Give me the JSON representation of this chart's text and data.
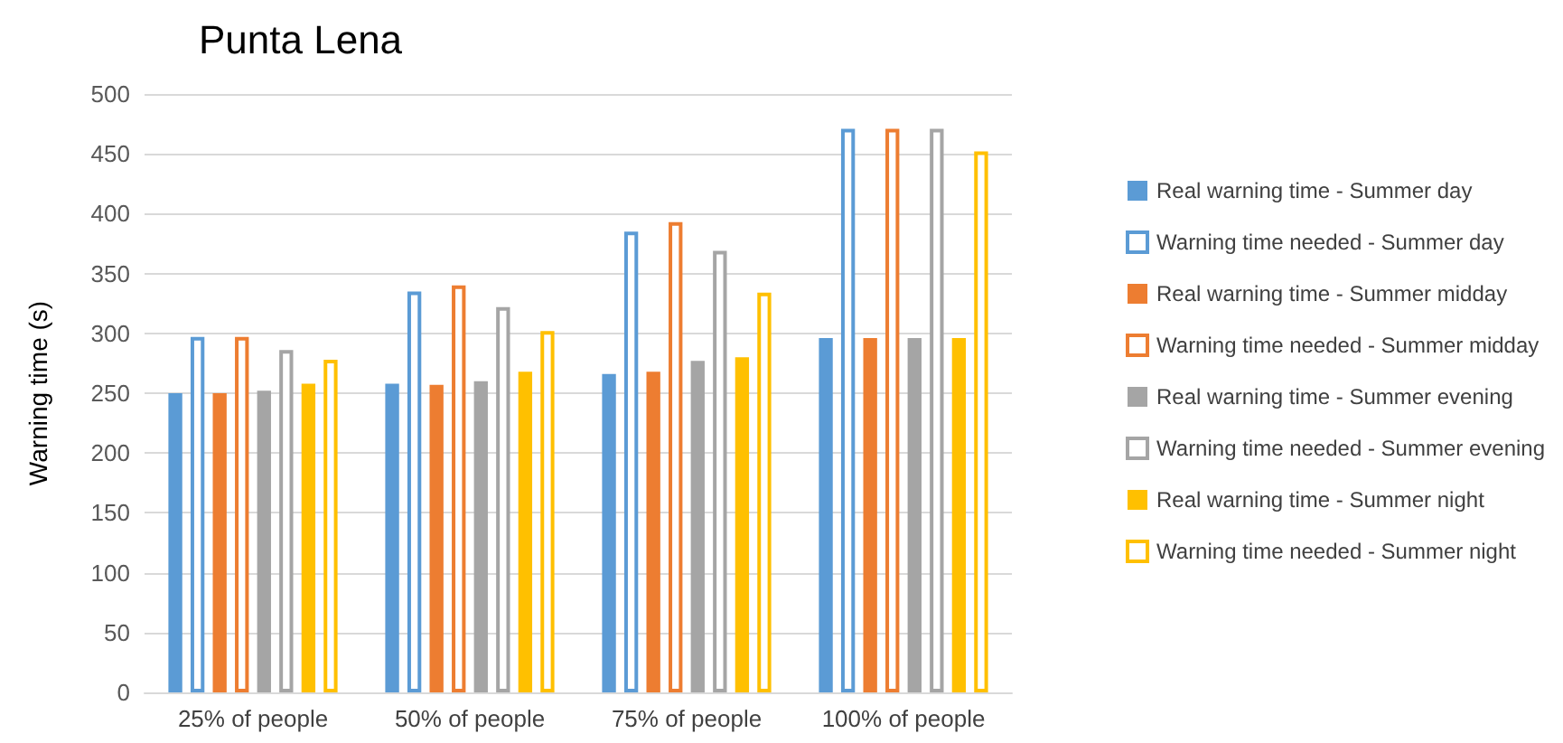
{
  "chart_data": {
    "type": "bar",
    "title": "Punta Lena",
    "ylabel": "Warning time (s)",
    "categories": [
      "25% of people",
      "50% of people",
      "75% of people",
      "100% of people"
    ],
    "ylim": [
      0,
      500
    ],
    "yticks": [
      0,
      50,
      100,
      150,
      200,
      250,
      300,
      350,
      400,
      450,
      500
    ],
    "grid": "y",
    "legend": "right",
    "series": [
      {
        "name": "Real warning time - Summer day",
        "color": "#5b9bd5",
        "values": [
          250,
          258,
          266,
          296
        ]
      },
      {
        "name": "Warning time needed - Summer day",
        "color": "#5b9bd5",
        "values": [
          297,
          335,
          385,
          471
        ]
      },
      {
        "name": "Real warning time - Summer midday",
        "color": "#ed7d31",
        "values": [
          250,
          257,
          268,
          296
        ]
      },
      {
        "name": "Warning time needed - Summer midday",
        "color": "#ed7d31",
        "values": [
          297,
          340,
          393,
          471
        ]
      },
      {
        "name": "Real warning time - Summer evening",
        "color": "#a5a5a5",
        "values": [
          252,
          260,
          277,
          296
        ]
      },
      {
        "name": "Warning time needed - Summer evening",
        "color": "#a5a5a5",
        "values": [
          286,
          322,
          369,
          471
        ]
      },
      {
        "name": "Real warning time - Summer night",
        "color": "#ffc000",
        "values": [
          258,
          268,
          280,
          296
        ]
      },
      {
        "name": "Warning time needed - Summer night",
        "color": "#ffc000",
        "values": [
          278,
          302,
          334,
          452
        ]
      }
    ]
  }
}
